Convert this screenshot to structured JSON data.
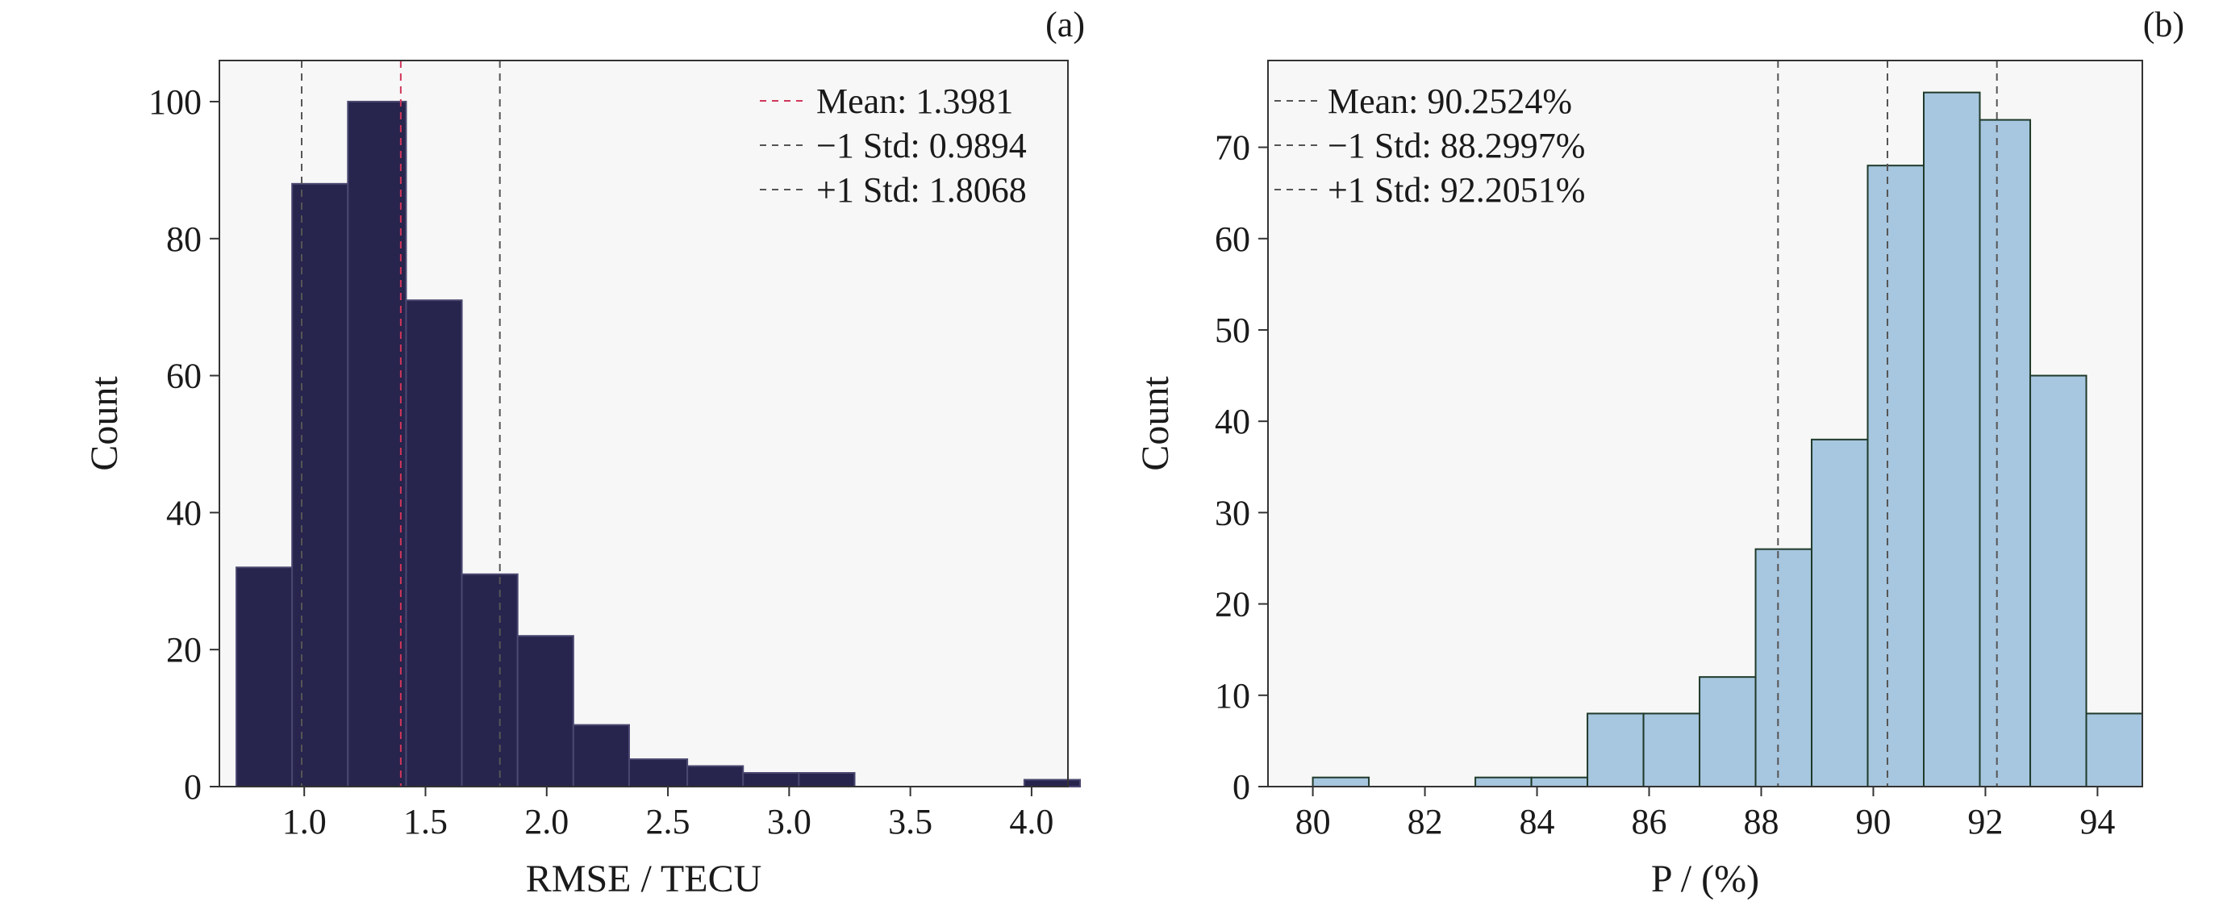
{
  "colors": {
    "panel_a_bar_fill": "#27244d",
    "panel_a_bar_edge": "#4a4870",
    "panel_b_bar_fill": "#a7c6df",
    "panel_b_bar_edge": "#1f3a2a",
    "plot_background": "#f7f7f7",
    "mean_line_a": "#d1375a",
    "std_line": "#555555",
    "mean_line_b": "#555555"
  },
  "chart_data": [
    {
      "type": "bar",
      "panel_label": "(a)",
      "xlabel": "RMSE / TECU",
      "ylabel": "Count",
      "xlim": [
        0.65,
        4.15
      ],
      "ylim": [
        0,
        106
      ],
      "xticks": [
        1.0,
        1.5,
        2.0,
        2.5,
        3.0,
        3.5,
        4.0
      ],
      "xtick_labels": [
        "1.0",
        "1.5",
        "2.0",
        "2.5",
        "3.0",
        "3.5",
        "4.0"
      ],
      "yticks": [
        0,
        20,
        40,
        60,
        80,
        100
      ],
      "ytick_labels": [
        "0",
        "20",
        "40",
        "60",
        "80",
        "100"
      ],
      "grid": false,
      "legend_position": "top-right",
      "bins": [
        {
          "start": 0.72,
          "end": 0.95,
          "count": 32
        },
        {
          "start": 0.95,
          "end": 1.18,
          "count": 88
        },
        {
          "start": 1.18,
          "end": 1.42,
          "count": 100
        },
        {
          "start": 1.42,
          "end": 1.65,
          "count": 71
        },
        {
          "start": 1.65,
          "end": 1.88,
          "count": 31
        },
        {
          "start": 1.88,
          "end": 2.11,
          "count": 22
        },
        {
          "start": 2.11,
          "end": 2.34,
          "count": 9
        },
        {
          "start": 2.34,
          "end": 2.58,
          "count": 4
        },
        {
          "start": 2.58,
          "end": 2.81,
          "count": 3
        },
        {
          "start": 2.81,
          "end": 3.04,
          "count": 2
        },
        {
          "start": 3.04,
          "end": 3.27,
          "count": 2
        },
        {
          "start": 3.27,
          "end": 3.5,
          "count": 0
        },
        {
          "start": 3.5,
          "end": 3.74,
          "count": 0
        },
        {
          "start": 3.74,
          "end": 3.97,
          "count": 0
        },
        {
          "start": 3.97,
          "end": 4.2,
          "count": 1
        }
      ],
      "lines": [
        {
          "label": "Mean: 1.3981",
          "x": 1.3981,
          "kind": "mean"
        },
        {
          "label": "−1 Std: 0.9894",
          "x": 0.9894,
          "kind": "std"
        },
        {
          "label": "+1 Std: 1.8068",
          "x": 1.8068,
          "kind": "std"
        }
      ]
    },
    {
      "type": "bar",
      "panel_label": "(b)",
      "xlabel": "P / (%)",
      "ylabel": "Count",
      "xlim": [
        79.2,
        94.8
      ],
      "ylim": [
        0,
        79.5
      ],
      "xticks": [
        80,
        82,
        84,
        86,
        88,
        90,
        92,
        94
      ],
      "xtick_labels": [
        "80",
        "82",
        "84",
        "86",
        "88",
        "90",
        "92",
        "94"
      ],
      "yticks": [
        0,
        10,
        20,
        30,
        40,
        50,
        60,
        70
      ],
      "ytick_labels": [
        "0",
        "10",
        "20",
        "30",
        "40",
        "50",
        "60",
        "70"
      ],
      "grid": false,
      "legend_position": "top-left",
      "bins": [
        {
          "start": 80.0,
          "end": 81.0,
          "count": 1
        },
        {
          "start": 81.0,
          "end": 82.0,
          "count": 0
        },
        {
          "start": 82.0,
          "end": 82.9,
          "count": 0
        },
        {
          "start": 82.9,
          "end": 83.9,
          "count": 1
        },
        {
          "start": 83.9,
          "end": 84.9,
          "count": 1
        },
        {
          "start": 84.9,
          "end": 85.9,
          "count": 8
        },
        {
          "start": 85.9,
          "end": 86.9,
          "count": 8
        },
        {
          "start": 86.9,
          "end": 87.9,
          "count": 12
        },
        {
          "start": 87.9,
          "end": 88.9,
          "count": 26
        },
        {
          "start": 88.9,
          "end": 89.9,
          "count": 38
        },
        {
          "start": 89.9,
          "end": 90.9,
          "count": 68
        },
        {
          "start": 90.9,
          "end": 91.9,
          "count": 76
        },
        {
          "start": 91.9,
          "end": 92.8,
          "count": 73
        },
        {
          "start": 92.8,
          "end": 93.8,
          "count": 45
        },
        {
          "start": 93.8,
          "end": 94.8,
          "count": 8
        }
      ],
      "lines": [
        {
          "label": "Mean: 90.2524%",
          "x": 90.2524,
          "kind": "mean"
        },
        {
          "label": "−1 Std: 88.2997%",
          "x": 88.2997,
          "kind": "std"
        },
        {
          "label": "+1 Std: 92.2051%",
          "x": 92.2051,
          "kind": "std"
        }
      ]
    }
  ]
}
